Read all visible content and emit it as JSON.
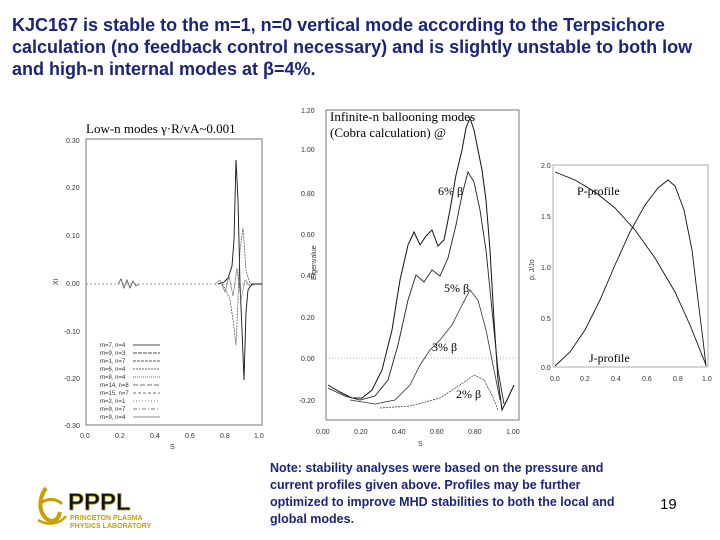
{
  "slide": {
    "title": "KJC167 is stable to the m=1, n=0 vertical mode according to the Terpsichore calculation (no feedback control necessary) and is slightly unstable to both low and high-n internal modes at β=4%.",
    "note": "Note: stability analyses were based on the pressure and current profiles given above. Profiles may be further optimized to improve MHD stabilities to both the local and global modes.",
    "page_number": "19"
  },
  "left_plot": {
    "caption": "Low-n modes  γ·R/vA~0.001",
    "ylabel": "Xi",
    "xlabel": "S",
    "yticks": [
      "0.30",
      "0.20",
      "0.10",
      "0.00",
      "-0.10",
      "-0.20",
      "-0.30"
    ],
    "xticks": [
      "0.0",
      "0.2",
      "0.4",
      "0.6",
      "0.8",
      "1.0"
    ],
    "legend": [
      "m=7, n=4",
      "m=9, n=3",
      "m=1, n=7",
      "m=6, n=4",
      "m=8, n=4",
      "m=14, n=8",
      "m=15, n=7",
      "m=2, n=1",
      "m=9, n=7",
      "m=9, n=4"
    ]
  },
  "center_plot": {
    "caption_line1": "Infinite-n ballooning modes",
    "caption_line2": "(Cobra calculation) @",
    "ylabel": "Eigenvalue",
    "xlabel": "S",
    "yticks": [
      "1.20",
      "1.00",
      "0.80",
      "0.60",
      "0.40",
      "0.20",
      "0.00",
      "-0.20"
    ],
    "xticks": [
      "0.00",
      "0.20",
      "0.40",
      "0.60",
      "0.80",
      "1.00"
    ],
    "curve_labels": [
      "6% β",
      "5% β",
      "3% β",
      "2% β"
    ]
  },
  "right_plot": {
    "ylabel": "p, J/Jo",
    "p_label": "P-profile",
    "j_label": "J-profile",
    "yticks": [
      "2.0",
      "1.5",
      "1.0",
      "0.5",
      "0.0"
    ],
    "xticks": [
      "0.0",
      "0.2",
      "0.4",
      "0.6",
      "0.8",
      "1.0"
    ]
  },
  "logo": {
    "name": "PPPL",
    "line1": "PRINCETON PLASMA",
    "line2": "PHYSICS LABORATORY",
    "color": "#c9a000"
  }
}
